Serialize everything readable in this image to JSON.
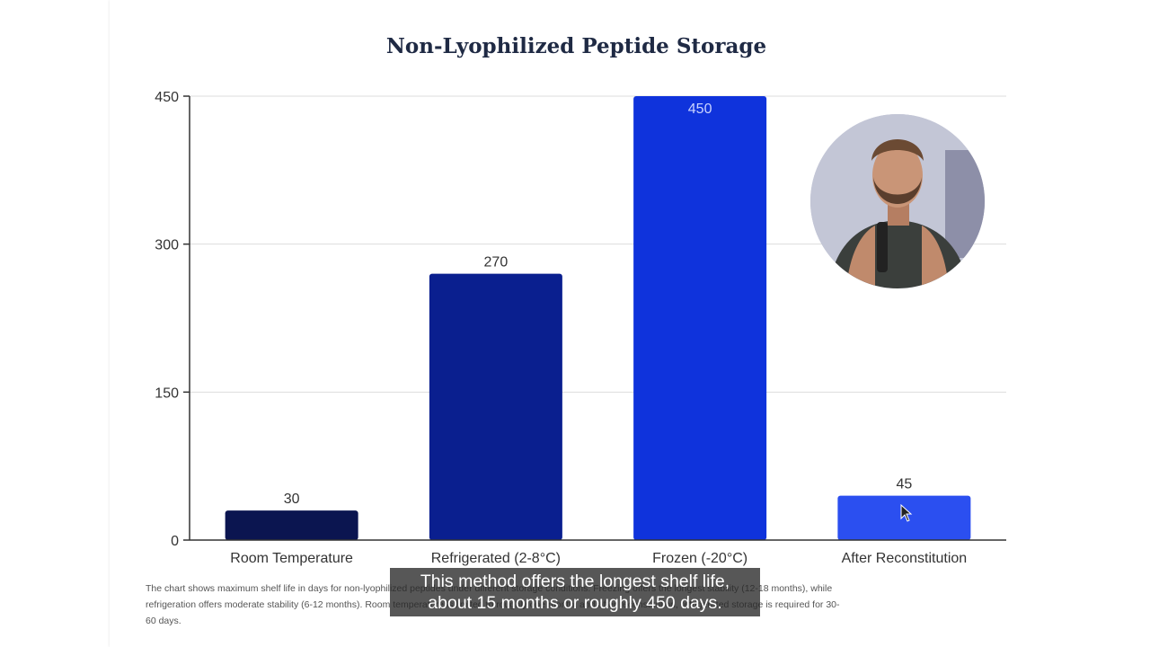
{
  "chart_data": {
    "type": "bar",
    "title": "Non-Lyophilized Peptide Storage",
    "xlabel": "",
    "ylabel": "",
    "categories": [
      "Room Temperature",
      "Refrigerated (2-8°C)",
      "Frozen (-20°C)",
      "After Reconstitution"
    ],
    "values": [
      30,
      270,
      450,
      45
    ],
    "data_labels": [
      "30",
      "270",
      "450",
      "45"
    ],
    "bar_colors": [
      "#0b1550",
      "#0a1f8f",
      "#0f33dc",
      "#2b4ff0"
    ],
    "ylim": [
      0,
      450
    ],
    "yticks": [
      0,
      150,
      300,
      450
    ],
    "ytick_labels": [
      "0",
      "150",
      "300",
      "450"
    ],
    "grid": true,
    "legend": "none"
  },
  "caption": {
    "line1": "The chart shows maximum shelf life in days for non-lyophilized peptides under different storage conditions. Freezing offers the longest stability (12-18 months), while",
    "line2": "refrigeration offers moderate stability (6-12 months). Room temperature is limited to roughly one month, and after reconstitution, refrigerated storage is required for 30-",
    "line3": "60 days."
  },
  "subtitle": {
    "line1": "This method offers the longest shelf life,",
    "line2": "about 15 months or roughly 450 days."
  }
}
